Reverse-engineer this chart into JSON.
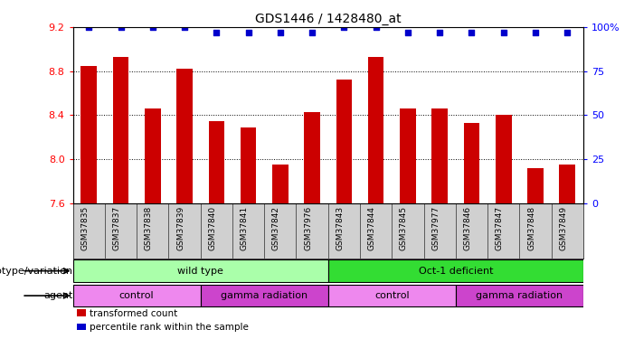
{
  "title": "GDS1446 / 1428480_at",
  "samples": [
    "GSM37835",
    "GSM37837",
    "GSM37838",
    "GSM37839",
    "GSM37840",
    "GSM37841",
    "GSM37842",
    "GSM37976",
    "GSM37843",
    "GSM37844",
    "GSM37845",
    "GSM37977",
    "GSM37846",
    "GSM37847",
    "GSM37848",
    "GSM37849"
  ],
  "bar_values": [
    8.85,
    8.93,
    8.46,
    8.82,
    8.35,
    8.29,
    7.95,
    8.43,
    8.72,
    8.93,
    8.46,
    8.46,
    8.33,
    8.4,
    7.92,
    7.95
  ],
  "percentile_values": [
    100,
    100,
    100,
    100,
    97,
    97,
    97,
    97,
    100,
    100,
    97,
    97,
    97,
    97,
    97,
    97
  ],
  "ylim_left": [
    7.6,
    9.2
  ],
  "ylim_right": [
    0,
    100
  ],
  "yticks_left": [
    7.6,
    8.0,
    8.4,
    8.8,
    9.2
  ],
  "yticks_right": [
    0,
    25,
    50,
    75,
    100
  ],
  "bar_color": "#cc0000",
  "dot_color": "#0000cc",
  "genotype_groups": [
    {
      "label": "wild type",
      "start": 0,
      "end": 8,
      "color": "#aaffaa"
    },
    {
      "label": "Oct-1 deficient",
      "start": 8,
      "end": 16,
      "color": "#33dd33"
    }
  ],
  "agent_groups": [
    {
      "label": "control",
      "start": 0,
      "end": 4,
      "color": "#ee88ee"
    },
    {
      "label": "gamma radiation",
      "start": 4,
      "end": 8,
      "color": "#cc44cc"
    },
    {
      "label": "control",
      "start": 8,
      "end": 12,
      "color": "#ee88ee"
    },
    {
      "label": "gamma radiation",
      "start": 12,
      "end": 16,
      "color": "#cc44cc"
    }
  ],
  "legend_items": [
    {
      "label": "transformed count",
      "color": "#cc0000"
    },
    {
      "label": "percentile rank within the sample",
      "color": "#0000cc"
    }
  ],
  "title_fontsize": 10,
  "tick_fontsize": 6.5,
  "label_fontsize": 8,
  "bar_width": 0.5
}
